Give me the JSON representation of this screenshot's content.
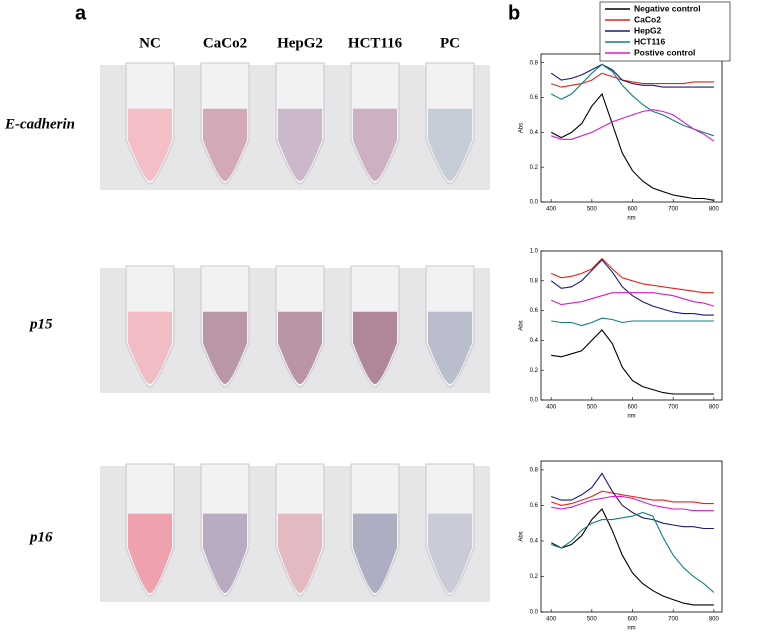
{
  "figure": {
    "panel_a": "a",
    "panel_b": "b",
    "columns": [
      "NC",
      "CaCo2",
      "HepG2",
      "HCT116",
      "PC"
    ],
    "rows": [
      "E-cadherin",
      "p15",
      "p16"
    ]
  },
  "chart_data": [
    {
      "type": "line",
      "x_label": "nm",
      "y_label": "Abs",
      "legend": "top",
      "x": [
        400,
        425,
        450,
        475,
        500,
        525,
        550,
        575,
        600,
        625,
        650,
        675,
        700,
        725,
        750,
        775,
        800
      ],
      "xlim": [
        375,
        820
      ],
      "xticks": [
        400,
        500,
        600,
        700,
        800
      ],
      "ylim": [
        0,
        0.85
      ],
      "yticks": [
        {
          "value": 0,
          "label": "0.0"
        },
        0.2,
        0.4,
        0.6,
        0.8
      ],
      "series": [
        {
          "name": "Negative control",
          "color": "#000000",
          "values": [
            0.4,
            0.37,
            0.4,
            0.45,
            0.55,
            0.62,
            0.45,
            0.28,
            0.18,
            0.12,
            0.08,
            0.06,
            0.04,
            0.03,
            0.02,
            0.02,
            0.01
          ]
        },
        {
          "name": "CaCo2",
          "color": "#e8221c",
          "values": [
            0.68,
            0.66,
            0.67,
            0.68,
            0.7,
            0.74,
            0.72,
            0.7,
            0.69,
            0.68,
            0.68,
            0.68,
            0.68,
            0.68,
            0.69,
            0.69,
            0.69
          ]
        },
        {
          "name": "HepG2",
          "color": "#1a1a7a",
          "values": [
            0.74,
            0.7,
            0.71,
            0.73,
            0.76,
            0.79,
            0.76,
            0.7,
            0.68,
            0.67,
            0.67,
            0.66,
            0.66,
            0.66,
            0.66,
            0.66,
            0.66
          ]
        },
        {
          "name": "HCT116",
          "color": "#0f8080",
          "values": [
            0.62,
            0.59,
            0.62,
            0.68,
            0.74,
            0.79,
            0.75,
            0.67,
            0.61,
            0.56,
            0.52,
            0.5,
            0.47,
            0.44,
            0.42,
            0.4,
            0.38
          ]
        },
        {
          "name": "Postive control",
          "color": "#d61ec8",
          "values": [
            0.38,
            0.36,
            0.36,
            0.38,
            0.4,
            0.43,
            0.46,
            0.48,
            0.5,
            0.52,
            0.53,
            0.52,
            0.5,
            0.46,
            0.42,
            0.39,
            0.35
          ]
        }
      ]
    },
    {
      "type": "line",
      "x_label": "nm",
      "y_label": "Abs",
      "x": [
        400,
        425,
        450,
        475,
        500,
        525,
        550,
        575,
        600,
        625,
        650,
        675,
        700,
        725,
        750,
        775,
        800
      ],
      "xlim": [
        375,
        820
      ],
      "xticks": [
        400,
        500,
        600,
        700,
        800
      ],
      "ylim": [
        0,
        1.0
      ],
      "yticks": [
        {
          "value": 0,
          "label": "0.0"
        },
        0.2,
        0.4,
        0.6,
        0.8,
        {
          "value": 1,
          "label": "1.0"
        }
      ],
      "series": [
        {
          "color": "#000000",
          "values": [
            0.3,
            0.29,
            0.31,
            0.33,
            0.4,
            0.47,
            0.38,
            0.22,
            0.13,
            0.09,
            0.07,
            0.05,
            0.04,
            0.04,
            0.04,
            0.04,
            0.04
          ]
        },
        {
          "color": "#e8221c",
          "values": [
            0.85,
            0.82,
            0.83,
            0.85,
            0.88,
            0.95,
            0.88,
            0.82,
            0.8,
            0.78,
            0.77,
            0.76,
            0.75,
            0.74,
            0.73,
            0.72,
            0.72
          ]
        },
        {
          "color": "#1a1a7a",
          "values": [
            0.8,
            0.75,
            0.76,
            0.8,
            0.87,
            0.94,
            0.86,
            0.76,
            0.7,
            0.66,
            0.63,
            0.61,
            0.59,
            0.58,
            0.58,
            0.57,
            0.57
          ]
        },
        {
          "color": "#0f8080",
          "values": [
            0.53,
            0.52,
            0.52,
            0.5,
            0.52,
            0.55,
            0.54,
            0.52,
            0.53,
            0.53,
            0.53,
            0.53,
            0.53,
            0.53,
            0.53,
            0.53,
            0.53
          ]
        },
        {
          "color": "#d61ec8",
          "values": [
            0.67,
            0.64,
            0.65,
            0.66,
            0.68,
            0.7,
            0.72,
            0.72,
            0.72,
            0.72,
            0.72,
            0.71,
            0.7,
            0.68,
            0.66,
            0.65,
            0.63
          ]
        }
      ]
    },
    {
      "type": "line",
      "x_label": "nm",
      "y_label": "Abs",
      "x": [
        400,
        425,
        450,
        475,
        500,
        525,
        550,
        575,
        600,
        625,
        650,
        675,
        700,
        725,
        750,
        775,
        800
      ],
      "xlim": [
        375,
        820
      ],
      "xticks": [
        400,
        500,
        600,
        700,
        800
      ],
      "ylim": [
        0,
        0.85
      ],
      "yticks": [
        {
          "value": 0,
          "label": "0.0"
        },
        0.2,
        0.4,
        0.6,
        0.8
      ],
      "series": [
        {
          "color": "#000000",
          "values": [
            0.39,
            0.36,
            0.38,
            0.43,
            0.52,
            0.58,
            0.46,
            0.32,
            0.22,
            0.16,
            0.12,
            0.09,
            0.07,
            0.05,
            0.04,
            0.04,
            0.04
          ]
        },
        {
          "color": "#e8221c",
          "values": [
            0.62,
            0.6,
            0.61,
            0.63,
            0.65,
            0.68,
            0.67,
            0.66,
            0.65,
            0.64,
            0.63,
            0.63,
            0.62,
            0.62,
            0.62,
            0.61,
            0.61
          ]
        },
        {
          "color": "#1a1a7a",
          "values": [
            0.65,
            0.63,
            0.63,
            0.66,
            0.7,
            0.78,
            0.68,
            0.6,
            0.56,
            0.53,
            0.52,
            0.5,
            0.49,
            0.48,
            0.48,
            0.47,
            0.47
          ]
        },
        {
          "color": "#0f8080",
          "values": [
            0.38,
            0.36,
            0.4,
            0.46,
            0.5,
            0.52,
            0.52,
            0.53,
            0.54,
            0.56,
            0.54,
            0.42,
            0.32,
            0.25,
            0.2,
            0.16,
            0.11
          ]
        },
        {
          "color": "#d61ec8",
          "values": [
            0.59,
            0.58,
            0.59,
            0.61,
            0.63,
            0.64,
            0.65,
            0.65,
            0.64,
            0.62,
            0.6,
            0.59,
            0.58,
            0.58,
            0.57,
            0.57,
            0.57
          ]
        }
      ]
    }
  ]
}
